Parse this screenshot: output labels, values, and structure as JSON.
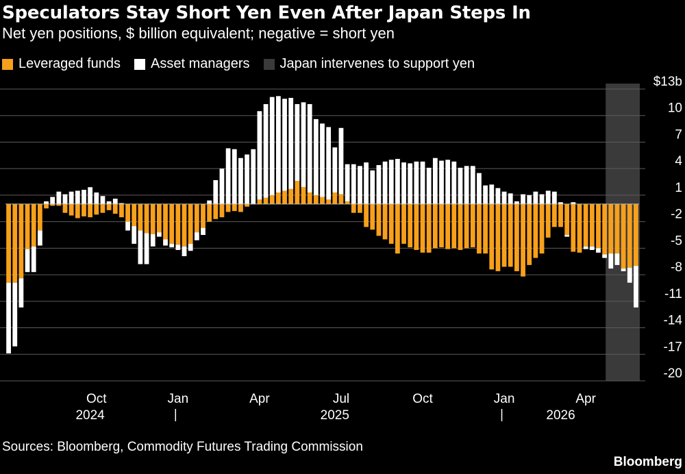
{
  "title": "Speculators Stay Short Yen Even After Japan Steps In",
  "subtitle": "Net yen positions, $ billion equivalent; negative = short yen",
  "legend": [
    {
      "label": "Leveraged funds",
      "color": "#f7a01c"
    },
    {
      "label": "Asset managers",
      "color": "#ffffff"
    },
    {
      "label": "Japan intervenes to support yen",
      "color": "#3a3a3a"
    }
  ],
  "source": "Sources: Bloomberg, Commodity Futures Trading Commission",
  "brand": "Bloomberg",
  "chart_data": {
    "type": "bar",
    "stacked": true,
    "y_tick_labels": [
      "$13b",
      "10",
      "7",
      "4",
      "1",
      "-2",
      "-5",
      "-8",
      "-11",
      "-14",
      "-17",
      "-20"
    ],
    "y_ticks": [
      13,
      10,
      7,
      4,
      1,
      -2,
      -5,
      -8,
      -11,
      -14,
      -17,
      -20
    ],
    "ylim": [
      -20,
      13
    ],
    "x_month_labels": [
      {
        "label": "Oct",
        "index": 14
      },
      {
        "label": "Jan",
        "index": 27
      },
      {
        "label": "Apr",
        "index": 40
      },
      {
        "label": "Jul",
        "index": 53
      },
      {
        "label": "Oct",
        "index": 66
      },
      {
        "label": "Jan",
        "index": 79
      },
      {
        "label": "Apr",
        "index": 92
      }
    ],
    "x_year_labels": [
      {
        "label": "2024",
        "index": 13
      },
      {
        "label": "2025",
        "index": 52
      },
      {
        "label": "2026",
        "index": 88
      }
    ],
    "year_separators": [
      27,
      79
    ],
    "intervention_band": {
      "start_index": 96,
      "end_index": 100
    },
    "series": [
      {
        "name": "Leveraged funds",
        "color": "#f7a01c",
        "values": [
          -8.9,
          -8.9,
          -8.4,
          -5.1,
          -4.8,
          -3.0,
          -0.5,
          -0.2,
          -0.2,
          -1.0,
          -1.3,
          -1.6,
          -1.4,
          -1.5,
          -1.2,
          -1.0,
          -0.7,
          -1.1,
          -1.5,
          -2.0,
          -2.5,
          -3.0,
          -3.3,
          -3.4,
          -3.2,
          -4.0,
          -4.5,
          -4.6,
          -4.8,
          -4.5,
          -3.2,
          -2.7,
          -2.0,
          -1.7,
          -1.5,
          -0.9,
          -0.8,
          -0.9,
          -0.3,
          0.0,
          0.5,
          0.7,
          1.0,
          1.3,
          1.5,
          1.7,
          2.6,
          1.9,
          1.3,
          1.0,
          0.8,
          0.5,
          1.3,
          1.1,
          0.3,
          -1.0,
          -1.0,
          -2.6,
          -2.9,
          -3.6,
          -4.0,
          -4.5,
          -5.6,
          -4.5,
          -4.9,
          -5.2,
          -5.5,
          -5.5,
          -5.0,
          -4.9,
          -5.1,
          -5.0,
          -5.2,
          -5.0,
          -4.9,
          -5.6,
          -5.6,
          -7.4,
          -7.6,
          -7.1,
          -7.1,
          -7.6,
          -8.2,
          -6.9,
          -6.1,
          -5.6,
          -3.8,
          -2.6,
          -2.6,
          -3.5,
          -5.4,
          -5.5,
          -4.8,
          -4.8,
          -5.0,
          -5.7,
          -5.6,
          -5.6,
          -7.3,
          -7.2,
          -7.0
        ]
      },
      {
        "name": "Asset managers",
        "color": "#ffffff",
        "values": [
          -8.0,
          -7.2,
          -3.3,
          -2.6,
          -2.9,
          -1.7,
          0.3,
          0.8,
          1.4,
          1.1,
          1.4,
          1.5,
          1.6,
          1.9,
          1.3,
          0.9,
          0.3,
          0.6,
          0.1,
          -1.0,
          -2.0,
          -3.8,
          -3.5,
          -1.4,
          -0.5,
          -0.7,
          -0.4,
          -0.6,
          -1.1,
          -0.8,
          -0.9,
          -0.8,
          0.4,
          2.7,
          4.0,
          6.3,
          6.2,
          5.2,
          5.6,
          6.2,
          10.0,
          10.6,
          11.1,
          10.9,
          10.4,
          10.3,
          8.7,
          9.6,
          10.0,
          8.6,
          8.3,
          8.2,
          5.1,
          7.5,
          4.2,
          4.5,
          4.3,
          4.7,
          3.8,
          4.4,
          4.8,
          5.0,
          5.1,
          4.7,
          4.6,
          4.8,
          4.8,
          4.1,
          5.2,
          4.9,
          5.0,
          4.8,
          4.1,
          4.3,
          4.3,
          3.5,
          2.1,
          2.2,
          1.8,
          1.4,
          1.2,
          0.3,
          1.1,
          1.0,
          1.4,
          1.1,
          1.5,
          1.4,
          0.2,
          -0.2,
          0.2,
          0.0,
          -0.3,
          -0.4,
          -0.5,
          -0.4,
          -1.7,
          -1.3,
          -0.3,
          -1.7,
          -4.7
        ]
      }
    ]
  }
}
